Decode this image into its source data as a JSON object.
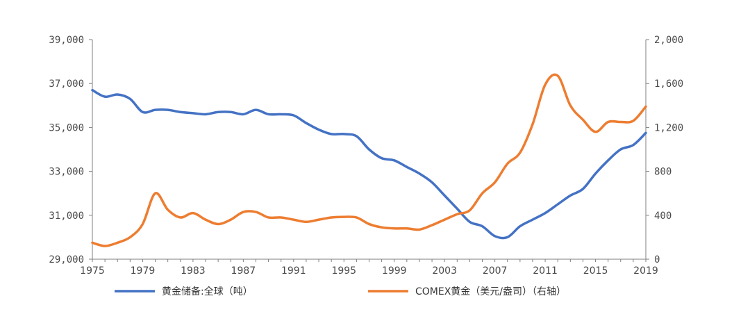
{
  "chart_data": {
    "type": "line",
    "colors": {
      "left": "#4472C4",
      "right": "#ED7D31"
    },
    "x_ticks": [
      "1975",
      "1979",
      "1983",
      "1987",
      "1991",
      "1995",
      "1999",
      "2003",
      "2007",
      "2011",
      "2015",
      "2019"
    ],
    "y_left": {
      "range": [
        29000,
        39000
      ],
      "ticks": [
        29000,
        31000,
        33000,
        35000,
        37000,
        39000
      ],
      "tick_labels": [
        "29,000",
        "31,000",
        "33,000",
        "35,000",
        "37,000",
        "39,000"
      ]
    },
    "y_right": {
      "range": [
        0,
        2000
      ],
      "ticks": [
        0,
        400,
        800,
        1200,
        1600,
        2000
      ],
      "tick_labels": [
        "0",
        "400",
        "800",
        "1,200",
        "1,600",
        "2,000"
      ]
    },
    "legend": [
      "黄金储备:全球（吨）",
      "COMEX黄金（美元/盎司）（右轴）"
    ],
    "grid": false,
    "series": [
      {
        "name": "黄金储备:全球（吨）",
        "axis": "left",
        "x": [
          1975,
          1976,
          1977,
          1978,
          1979,
          1980,
          1981,
          1982,
          1983,
          1984,
          1985,
          1986,
          1987,
          1988,
          1989,
          1990,
          1991,
          1992,
          1993,
          1994,
          1995,
          1996,
          1997,
          1998,
          1999,
          2000,
          2001,
          2002,
          2003,
          2004,
          2005,
          2006,
          2007,
          2008,
          2009,
          2010,
          2011,
          2012,
          2013,
          2014,
          2015,
          2016,
          2017,
          2018,
          2019
        ],
        "values": [
          36700,
          36400,
          36500,
          36300,
          35700,
          35800,
          35800,
          35700,
          35650,
          35600,
          35700,
          35700,
          35600,
          35800,
          35600,
          35600,
          35550,
          35200,
          34900,
          34700,
          34700,
          34600,
          34000,
          33600,
          33500,
          33200,
          32900,
          32500,
          31900,
          31300,
          30700,
          30500,
          30050,
          30000,
          30500,
          30800,
          31100,
          31500,
          31900,
          32200,
          32900,
          33500,
          34000,
          34200,
          34750
        ]
      },
      {
        "name": "COMEX黄金（美元/盎司）（右轴）",
        "axis": "right",
        "x": [
          1975,
          1976,
          1977,
          1978,
          1979,
          1980,
          1981,
          1982,
          1983,
          1984,
          1985,
          1986,
          1987,
          1988,
          1989,
          1990,
          1991,
          1992,
          1993,
          1994,
          1995,
          1996,
          1997,
          1998,
          1999,
          2000,
          2001,
          2002,
          2003,
          2004,
          2005,
          2006,
          2007,
          2008,
          2009,
          2010,
          2011,
          2012,
          2013,
          2014,
          2015,
          2016,
          2017,
          2018,
          2019
        ],
        "values": [
          150,
          120,
          150,
          200,
          320,
          600,
          450,
          380,
          420,
          360,
          320,
          360,
          430,
          430,
          380,
          380,
          360,
          340,
          360,
          380,
          385,
          380,
          320,
          290,
          280,
          280,
          270,
          310,
          360,
          410,
          445,
          600,
          700,
          870,
          970,
          1230,
          1590,
          1670,
          1400,
          1270,
          1160,
          1250,
          1250,
          1260,
          1390
        ]
      }
    ]
  }
}
